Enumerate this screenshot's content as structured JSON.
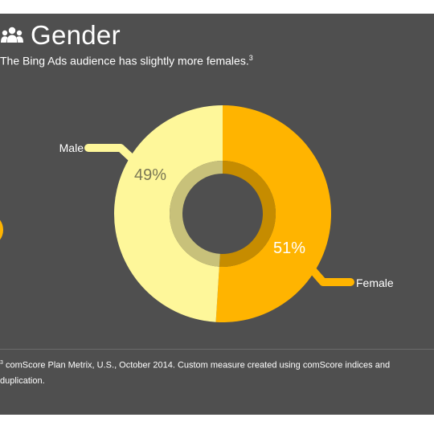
{
  "header": {
    "icon": "people-group-icon",
    "title": "Gender",
    "subtitle": "The Bing Ads audience has slightly more females.",
    "subtitle_note": "3"
  },
  "chart_data": {
    "type": "pie",
    "variant": "donut",
    "categories": [
      "Male",
      "Female"
    ],
    "values": [
      49,
      51
    ],
    "value_labels": [
      "49%",
      "51%"
    ],
    "colors": [
      "#fef79a",
      "#ffb400"
    ],
    "inner_ring_colors": [
      "#c8c17a",
      "#c68c00"
    ]
  },
  "footnote": {
    "marker": "3",
    "text": "comScore Plan Metrix, U.S., October 2014. Custom measure created using comScore indices and duplication."
  },
  "colors": {
    "background": "#4f4f4f",
    "text": "#ffffff",
    "accent": "#ffb400"
  }
}
